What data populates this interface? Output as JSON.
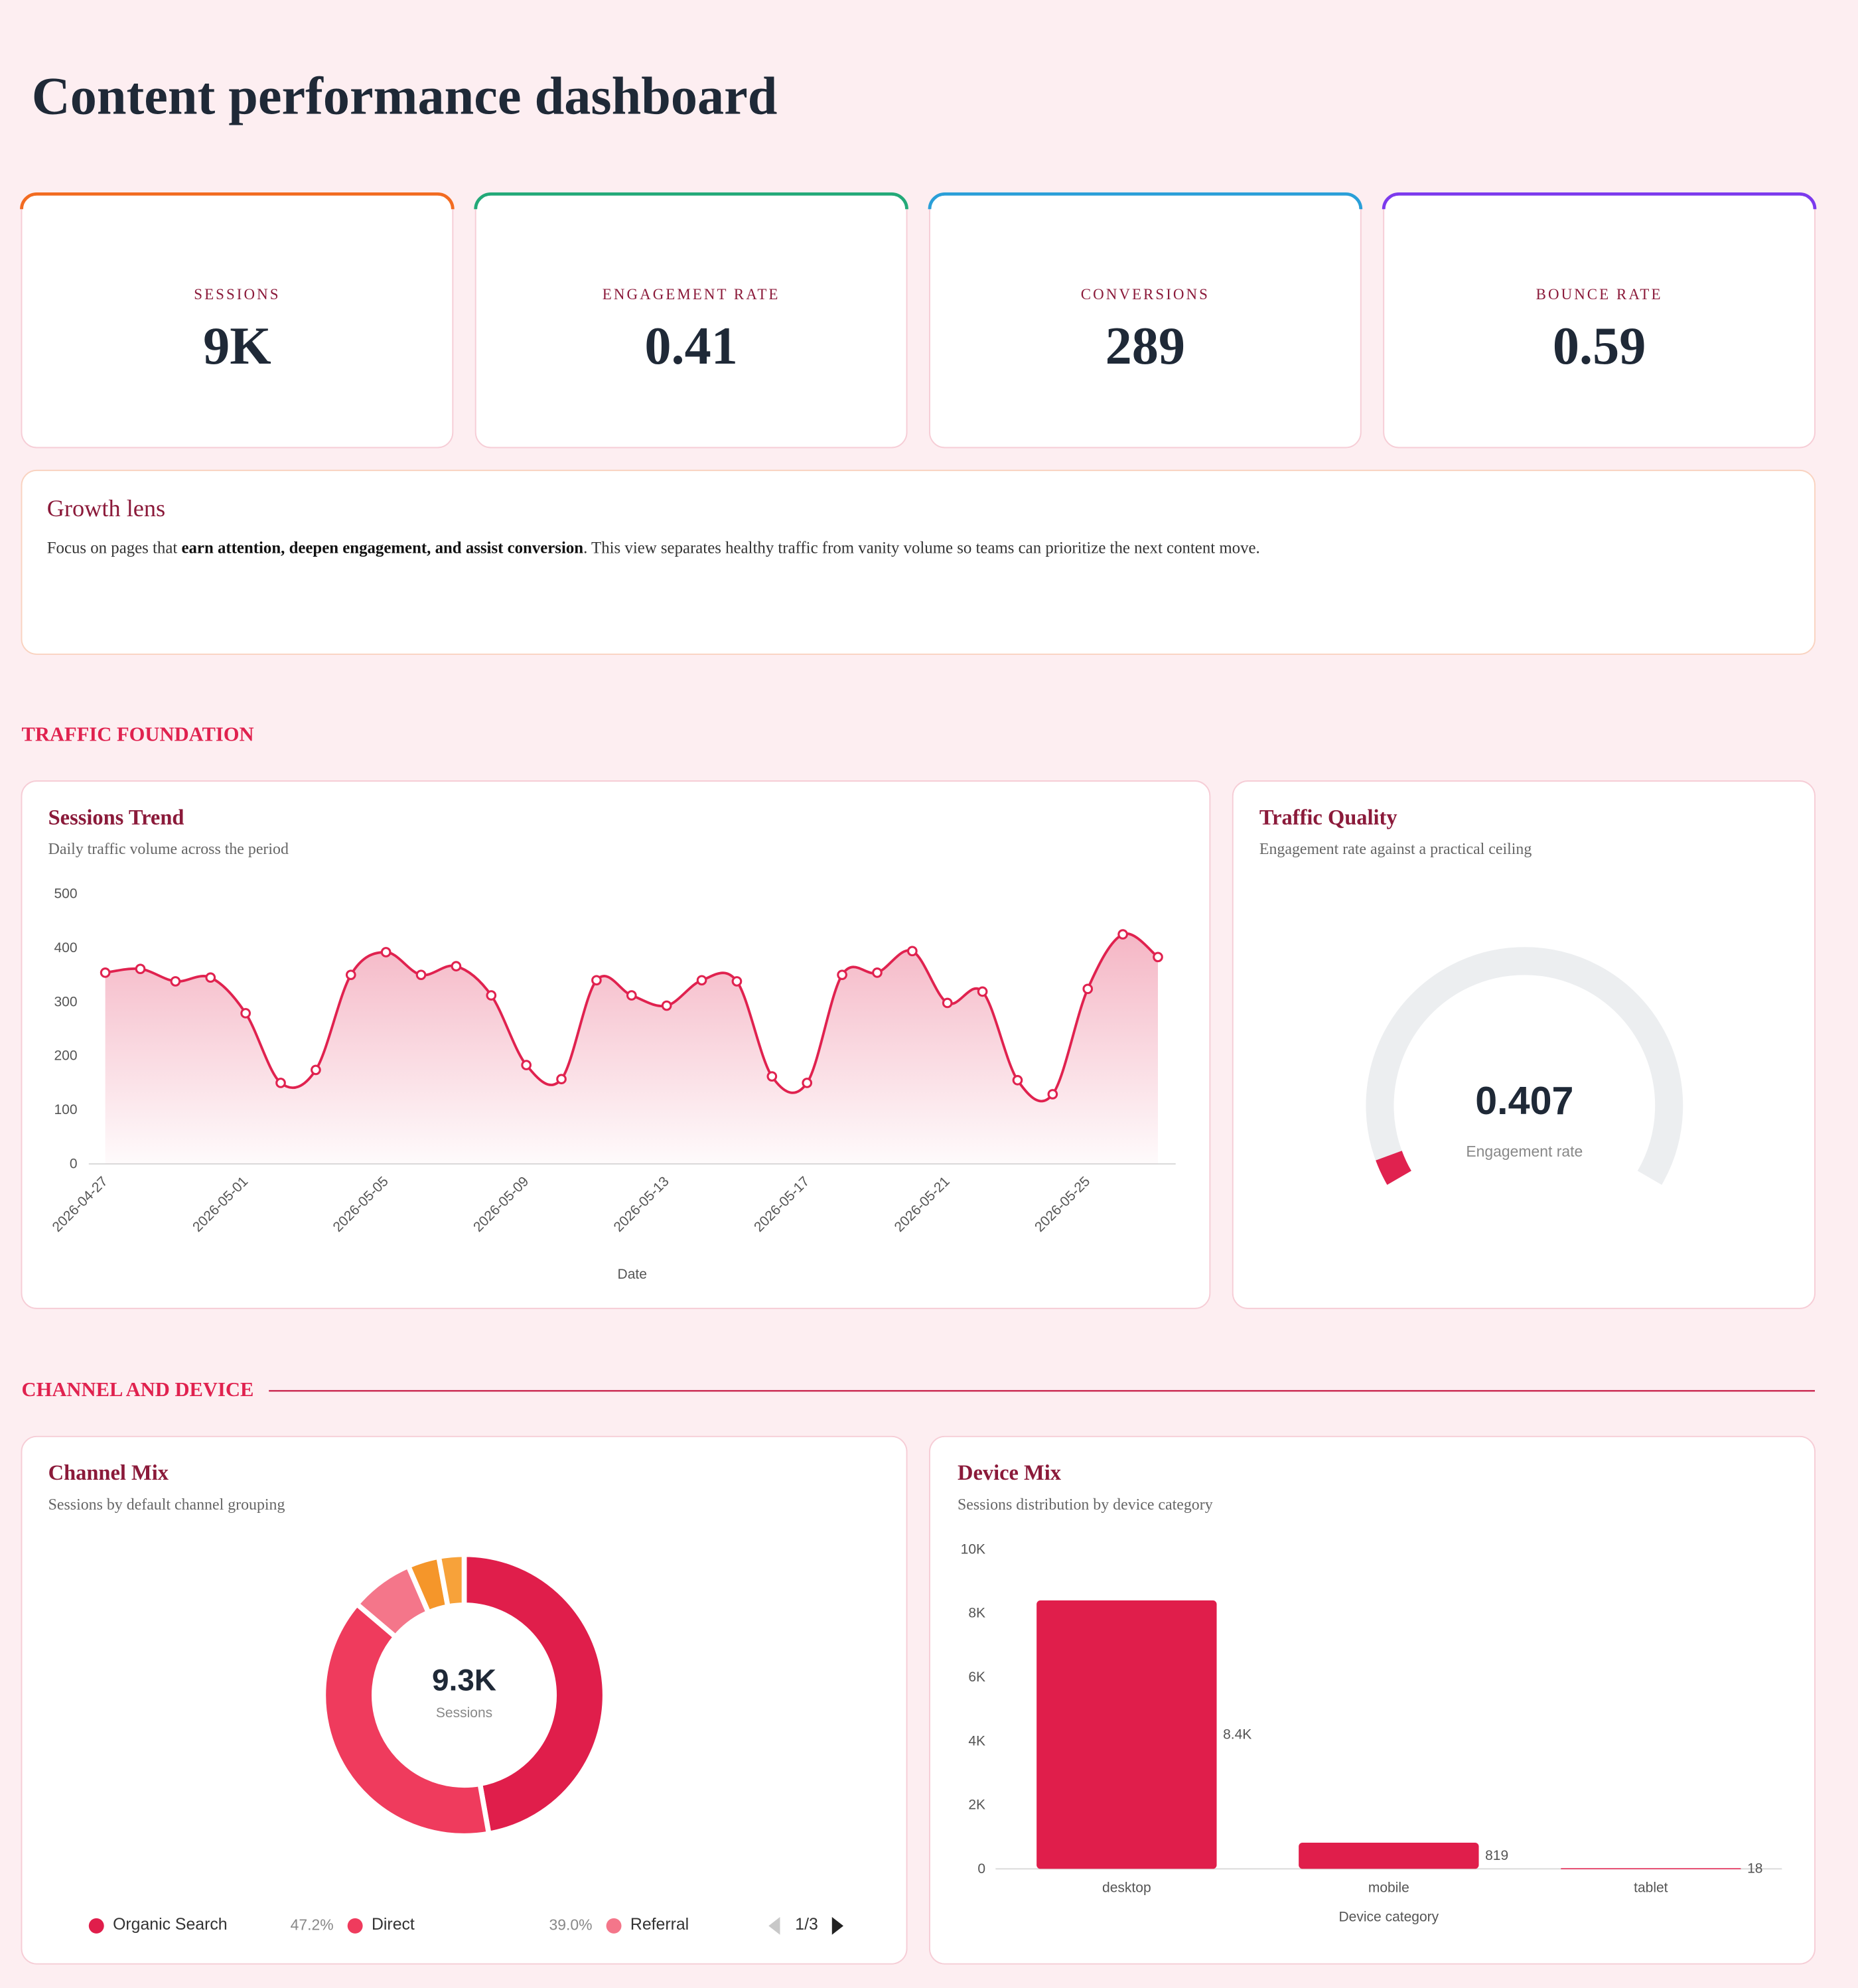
{
  "header": {
    "title": "Content performance dashboard"
  },
  "kpis": [
    {
      "label": "SESSIONS",
      "value": "9K",
      "color": "#f26b21"
    },
    {
      "label": "ENGAGEMENT RATE",
      "value": 0.41,
      "color": "#23a978"
    },
    {
      "label": "CONVERSIONS",
      "value": 289,
      "color": "#2a9fd8"
    },
    {
      "label": "BOUNCE RATE",
      "value": 0.59,
      "color": "#7c3aed"
    }
  ],
  "growth": {
    "title": "Growth lens",
    "body_before": "Focus on pages that ",
    "body_bold": "earn attention, deepen engagement, and assist conversion",
    "body_after": ". This view separates healthy traffic from vanity volume so teams can prioritize the next content move."
  },
  "sections": [
    "TRAFFIC FOUNDATION",
    "CHANNEL AND DEVICE"
  ],
  "chart_data": [
    {
      "type": "line",
      "title": "Sessions Trend",
      "subtitle": "Daily traffic volume across the period",
      "x_label": "Date",
      "categories": [
        "2026-04-27",
        null,
        null,
        null,
        "2026-05-01",
        null,
        null,
        null,
        "2026-05-05",
        null,
        null,
        null,
        "2026-05-09",
        null,
        null,
        null,
        "2026-05-13",
        null,
        null,
        null,
        "2026-05-17",
        null,
        null,
        null,
        "2026-05-21",
        null,
        null,
        null,
        "2026-05-25",
        null,
        null
      ],
      "values": [
        354,
        361,
        338,
        345,
        279,
        150,
        174,
        350,
        392,
        350,
        366,
        312,
        183,
        157,
        340,
        312,
        293,
        340,
        338,
        162,
        150,
        350,
        354,
        394,
        298,
        319,
        155,
        129,
        324,
        425,
        383
      ],
      "color": "#e0224f",
      "ylim": [
        0,
        500
      ],
      "yticks": [
        0,
        100,
        200,
        300,
        400,
        500
      ]
    },
    {
      "type": "gauge",
      "title": "Traffic Quality",
      "subtitle": "Engagement rate against a practical ceiling",
      "value": 0.407,
      "label": "Engagement rate",
      "range": [
        0,
        10
      ],
      "color": "#e0224f"
    },
    {
      "type": "pie",
      "title": "Channel Mix",
      "subtitle": "Sessions by default channel grouping",
      "center_label": "9.3K",
      "center_caption": "Sessions",
      "categories": [
        "Organic Search",
        "Direct",
        "Referral",
        null,
        null
      ],
      "values": [
        47.2,
        39.0,
        7.3,
        3.6,
        2.9
      ],
      "value_labels": [
        "47.2%",
        "39.0%",
        null,
        null,
        null
      ],
      "colors": [
        "#e01e4b",
        "#ef3b5d",
        "#f4768a",
        "#f5962a",
        "#f7a23a"
      ],
      "legend_page": "1/3"
    },
    {
      "type": "bar",
      "title": "Device Mix",
      "subtitle": "Sessions distribution by device category",
      "x_label": "Device category",
      "categories": [
        "desktop",
        "mobile",
        "tablet"
      ],
      "values": [
        8400,
        819,
        18
      ],
      "value_labels": [
        "8.4K",
        "819",
        "18"
      ],
      "color": "#e01e4b",
      "ylim": [
        0,
        10000
      ],
      "yticks": [
        0,
        {
          "value": 2000,
          "label": "2K"
        },
        {
          "value": 4000,
          "label": "4K"
        },
        {
          "value": 6000,
          "label": "6K"
        },
        {
          "value": 8000,
          "label": "8K"
        },
        {
          "value": 10000,
          "label": "10K"
        }
      ]
    }
  ]
}
